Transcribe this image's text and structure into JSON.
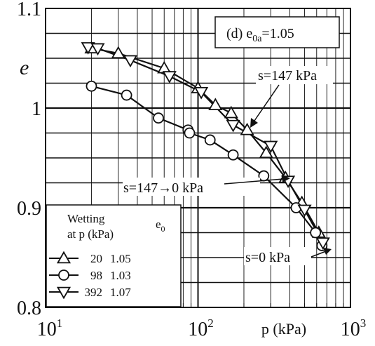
{
  "chart_data": {
    "type": "scatter",
    "panel_label": "(d) e",
    "panel_label_sub": "0a",
    "panel_label_value": "=1.05",
    "ylabel": "e",
    "xlabel": "p (kPa)",
    "xscale": "log",
    "xlim": [
      10,
      1000
    ],
    "ylim": [
      0.8,
      1.1
    ],
    "grid": true,
    "y_ticks": [
      {
        "value": 1.1,
        "label": "1.1"
      },
      {
        "value": 1.0,
        "label": "1"
      },
      {
        "value": 0.9,
        "label": "0.9"
      },
      {
        "value": 0.8,
        "label": "0.8"
      }
    ],
    "x_ticks": [
      {
        "value": 10,
        "base": "10",
        "exp": "1"
      },
      {
        "value": 100,
        "base": "10",
        "exp": "2"
      },
      {
        "value": 1000,
        "base": "10",
        "exp": "3"
      }
    ],
    "series": [
      {
        "marker": "triangle-up",
        "x": [
          20,
          30,
          60,
          100,
          130,
          165,
          210,
          280,
          375,
          480,
          620
        ],
        "y": [
          1.06,
          1.055,
          1.04,
          1.02,
          1.003,
          0.995,
          0.978,
          0.955,
          0.93,
          0.905,
          0.875
        ]
      },
      {
        "marker": "circle",
        "x": [
          20,
          34,
          55,
          86,
          88,
          120,
          170,
          270,
          440,
          590,
          650
        ],
        "y": [
          1.022,
          1.013,
          0.99,
          0.978,
          0.975,
          0.968,
          0.953,
          0.932,
          0.9,
          0.875,
          0.862
        ]
      },
      {
        "marker": "triangle-down",
        "x": [
          19,
          22,
          36,
          65,
          105,
          170,
          300,
          390,
          500,
          660
        ],
        "y": [
          1.061,
          1.06,
          1.048,
          1.032,
          1.016,
          0.983,
          0.962,
          0.927,
          0.898,
          0.865
        ]
      }
    ],
    "lines": [
      {
        "x": [
          20,
          30,
          60,
          100,
          130,
          165,
          210,
          280,
          375,
          480,
          620
        ],
        "y": [
          1.06,
          1.055,
          1.04,
          1.02,
          1.003,
          0.995,
          0.978,
          0.955,
          0.93,
          0.905,
          0.875
        ]
      },
      {
        "x": [
          19,
          22,
          36,
          65,
          105,
          170,
          300,
          390,
          500,
          660
        ],
        "y": [
          1.061,
          1.06,
          1.048,
          1.032,
          1.016,
          0.983,
          0.962,
          0.927,
          0.898,
          0.865
        ]
      },
      {
        "x": [
          20,
          34,
          55,
          86,
          88,
          120,
          170,
          270,
          440,
          590,
          650
        ],
        "y": [
          1.022,
          1.013,
          0.99,
          0.978,
          0.975,
          0.968,
          0.953,
          0.932,
          0.9,
          0.875,
          0.862
        ]
      }
    ],
    "annotations": [
      {
        "text": "s=147 kPa"
      },
      {
        "text": "s=147→0 kPa"
      },
      {
        "text": "s=0 kPa"
      }
    ],
    "legend": {
      "title_line1": "Wetting",
      "title_line2": "at p (kPa)",
      "col_header": "e",
      "col_header_sub": "0",
      "placement": "bottom-left",
      "entries": [
        {
          "marker": "triangle-up",
          "p": "20",
          "e0": "1.05"
        },
        {
          "marker": "circle",
          "p": "98",
          "e0": "1.03"
        },
        {
          "marker": "triangle-down",
          "p": "392",
          "e0": "1.07"
        }
      ]
    }
  }
}
